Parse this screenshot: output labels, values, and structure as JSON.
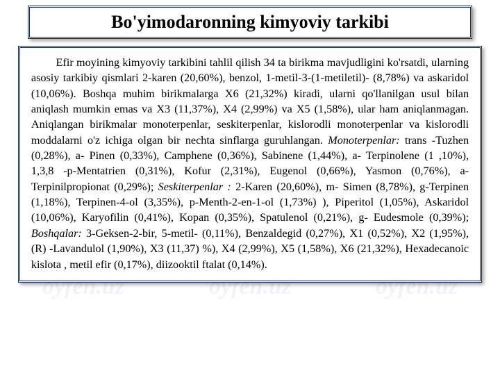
{
  "watermark_text": "oyfen.uz",
  "header": {
    "title": "Bo'yimodaronning kimyoviy tarkibi"
  },
  "body": {
    "type": "document",
    "background_color": "#ffffff",
    "border_color": "#1a2a5a",
    "font_family": "Times New Roman",
    "title_fontsize": 26,
    "body_fontsize": 16,
    "line_height": 1.38,
    "text": {
      "p1_a": "Efir moyining kimyoviy tarkibini tahlil qilish 34 ta birikma mavjudligini ko'rsatdi, ularning asosiy tarkibiy qismlari 2-karen (20,60%), benzol, 1-metil-3-(1-metiletil)- (8,78%) va askaridol (10,06%). Boshqa muhim birikmalarga X6 (21,32%) kiradi, ularni qo'llanilgan usul bilan aniqlash mumkin emas va X3 (11,37%), X4 (2,99%) va X5 (1,58%), ular ham aniqlanmagan. Aniqlangan birikmalar monoterpenlar, seskiterpenlar, kislorodli monoterpenlar va kislorodli moddalarni o'z ichiga olgan bir nechta sinflarga guruhlangan.  ",
      "em_mono": "Monoterpenlar:",
      "p1_b": " trans -Tuzhen (0,28%), a- Pinen (0,33%), Camphene (0,36%), Sabinene (1,44%), a- Terpinolene (1 ,10%), 1,3,8 -p-Mentatrien (0,31%), Kofur (2,31%), Eugenol (0,66%), Yasmon (0,76%), a- Terpinilpropionat (0,29%); ",
      "em_seski": "Seskiterpenlar :",
      "p1_c": " 2-Karen (20,60%), m- Simen (8,78%), g-Terpinen (1,18%), Terpinen-4-ol (3,35%), p-Menth-2-en-1-ol (1,73%) ), Piperitol (1,05%), Askaridol (10,06%), Karyofilin (0,41%), Kopan (0,35%), Spatulenol (0,21%), g- Eudesmole (0,39%); ",
      "em_bosh": "Boshqalar:",
      "p1_d": " 3-Geksen-2-bir, 5-metil- (0,11%), Benzaldegid (0,27%), X1 (0,52%), X2 (1,95%), (R) -Lavandulol (1,90%), X3 (11,37) %), X4 (2,99%), X5 (1,58%), X6 (21,32%), Hexadecanoic kislota , metil efir (0,17%), diizooktil ftalat (0,14%)."
    }
  }
}
